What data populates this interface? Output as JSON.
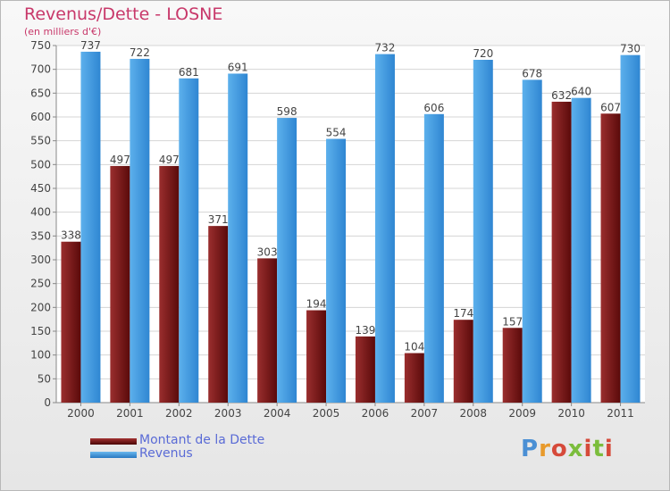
{
  "title": "Revenus/Dette - LOSNE",
  "subtitle": "(en milliers d'€)",
  "logo_text": "Proxiti",
  "colors": {
    "title": "#c8386a",
    "legend_text": "#5a6bd6",
    "dette": "#7a1a1a",
    "revenus": "#3f9be0"
  },
  "chart_data": {
    "type": "bar",
    "categories": [
      "2000",
      "2001",
      "2002",
      "2003",
      "2004",
      "2005",
      "2006",
      "2007",
      "2008",
      "2009",
      "2010",
      "2011"
    ],
    "series": [
      {
        "name": "Montant de la Dette",
        "color": "#7a1a1a",
        "values": [
          338,
          497,
          497,
          371,
          303,
          194,
          139,
          104,
          174,
          157,
          632,
          607
        ]
      },
      {
        "name": "Revenus",
        "color": "#3f9be0",
        "values": [
          737,
          722,
          681,
          691,
          598,
          554,
          732,
          606,
          720,
          678,
          640,
          730
        ]
      }
    ],
    "ylim": [
      0,
      750
    ],
    "yticks": [
      0,
      50,
      100,
      150,
      200,
      250,
      300,
      350,
      400,
      450,
      500,
      550,
      600,
      650,
      700,
      750
    ],
    "grid": true,
    "legend": "bottom-left"
  }
}
